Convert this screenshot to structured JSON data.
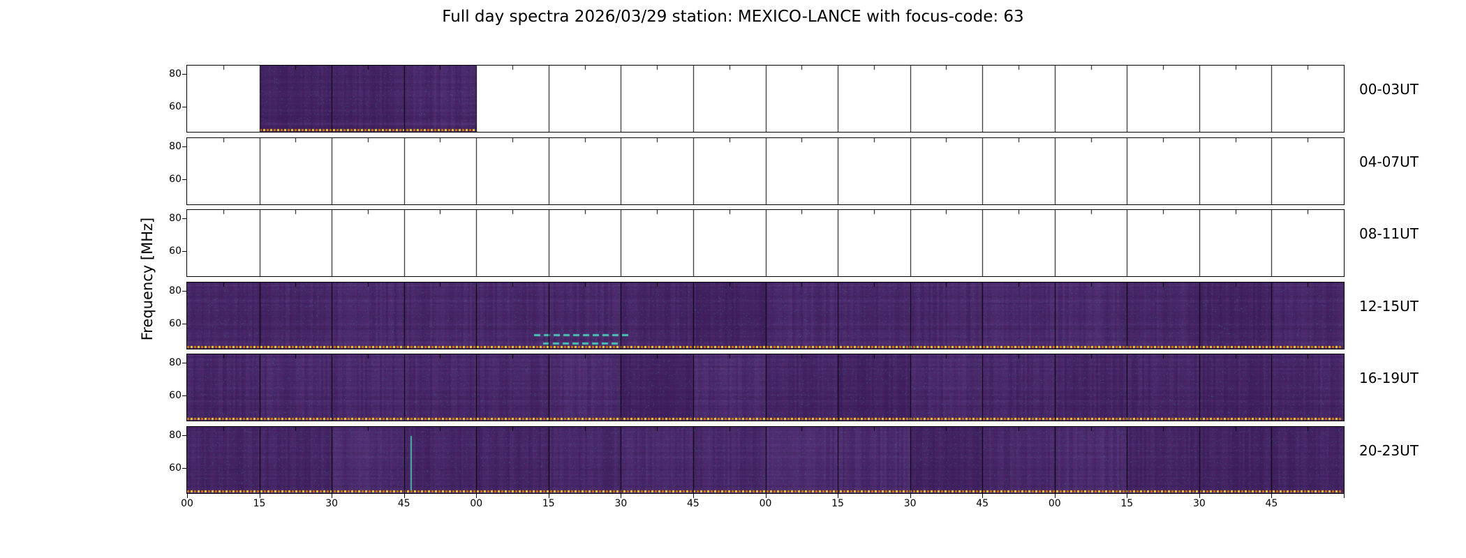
{
  "chart_data": {
    "type": "heatmap",
    "title": "Full day spectra 2026/03/29 station: MEXICO-LANCE with focus-code: 63",
    "date": "2026/03/29",
    "station": "MEXICO-LANCE",
    "focus_code": "63",
    "ylabel": "Frequency [MHz]",
    "yticks": [
      "80",
      "60"
    ],
    "ytick_values": [
      80,
      60
    ],
    "y_range_mhz": [
      45,
      85
    ],
    "x_tick_labels": [
      "00",
      "15",
      "30",
      "45",
      "00",
      "15",
      "30",
      "45",
      "00",
      "15",
      "30",
      "45",
      "00",
      "15",
      "30",
      "45"
    ],
    "panels_per_row": 16,
    "minutes_per_panel": 15,
    "rows": [
      {
        "label": "00-03UT",
        "filled_range": [
          1,
          4
        ]
      },
      {
        "label": "04-07UT",
        "filled_range": null
      },
      {
        "label": "08-11UT",
        "filled_range": null
      },
      {
        "label": "12-15UT",
        "filled_range": [
          0,
          16
        ]
      },
      {
        "label": "16-19UT",
        "filled_range": [
          0,
          16
        ]
      },
      {
        "label": "20-23UT",
        "filled_range": [
          0,
          16
        ]
      }
    ],
    "features": [
      {
        "row": 3,
        "type": "h-dashes",
        "x0": 0.3,
        "x1": 0.378,
        "y": 0.78,
        "color": "#49c3ae"
      },
      {
        "row": 3,
        "type": "h-dashes",
        "x0": 0.308,
        "x1": 0.372,
        "y": 0.9,
        "color": "#49c3ae"
      },
      {
        "row": 5,
        "type": "v-streak",
        "x": 0.193,
        "y0": 0.14,
        "y1": 0.96,
        "color": "#4fb3a5"
      }
    ],
    "colors": {
      "background": "#ffffff",
      "frame": "#000000",
      "spectrogram_base": "#3b1c59",
      "spectrogram_light": "#553579",
      "spectrogram_teal": "#2e6d8e",
      "baseline_dot_orange": "#e07b00",
      "baseline_dot_yellow": "#f7d728"
    },
    "noise_seed": 1337
  }
}
